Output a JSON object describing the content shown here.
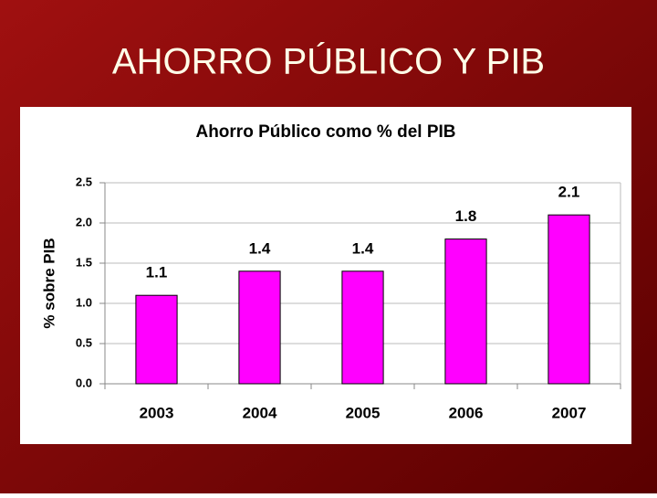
{
  "slide_title": "AHORRO PÚBLICO Y PIB",
  "chart_data": {
    "type": "bar",
    "title": "Ahorro Público como % del PIB",
    "y_label": "% sobre PIB",
    "categories": [
      "2003",
      "2004",
      "2005",
      "2006",
      "2007"
    ],
    "values": [
      1.1,
      1.4,
      1.4,
      1.8,
      2.1
    ],
    "color": "#ff00ff",
    "ylim": [
      0,
      2.5
    ],
    "yticks": [
      {
        "value": 0,
        "label": "0.0"
      },
      0.5,
      {
        "value": 1,
        "label": "1.0"
      },
      1.5,
      {
        "value": 2,
        "label": "2.0"
      },
      2.5
    ],
    "grid": true
  }
}
